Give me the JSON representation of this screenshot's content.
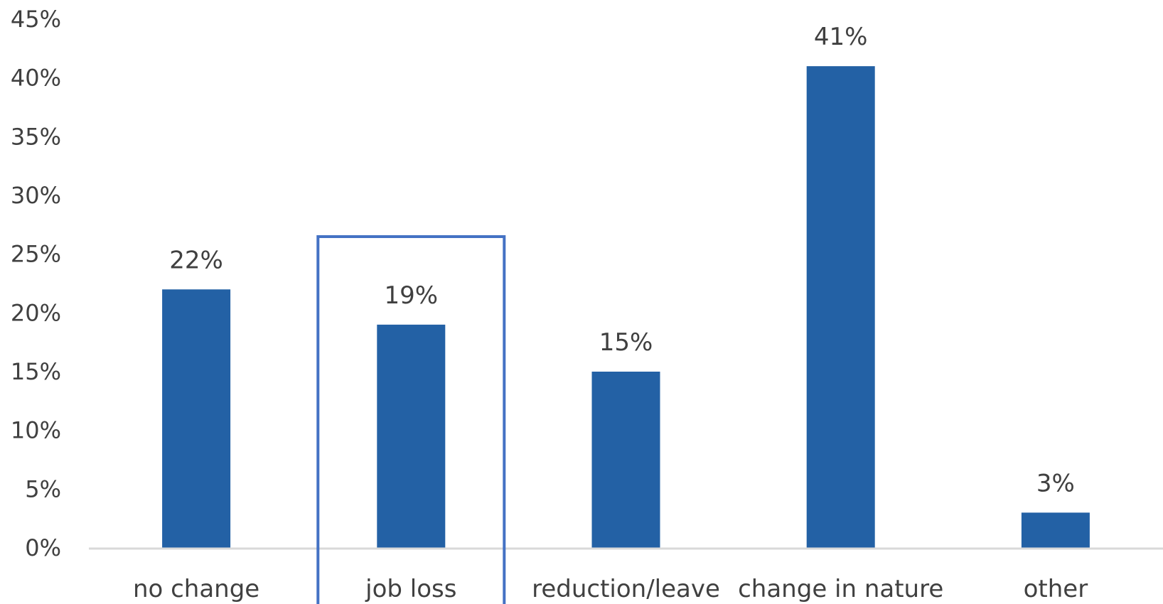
{
  "chart_data": {
    "type": "bar",
    "categories": [
      "no change",
      "job loss",
      "reduction/leave",
      "change in nature",
      "other"
    ],
    "values": [
      22,
      19,
      15,
      41,
      3
    ],
    "data_labels": [
      "22%",
      "19%",
      "15%",
      "41%",
      "3%"
    ],
    "ylim": [
      0,
      45
    ],
    "yticks": [
      0,
      5,
      10,
      15,
      20,
      25,
      30,
      35,
      40,
      45
    ],
    "ytick_labels": [
      "0%",
      "5%",
      "10%",
      "15%",
      "20%",
      "25%",
      "30%",
      "35%",
      "40%",
      "45%"
    ],
    "highlighted_category": "job loss",
    "grid": false,
    "legend": "none",
    "colors": {
      "bar": "#2361a5",
      "highlight_box": "#4472c4",
      "axis": "#d9d9d9",
      "text": "#404040"
    }
  }
}
